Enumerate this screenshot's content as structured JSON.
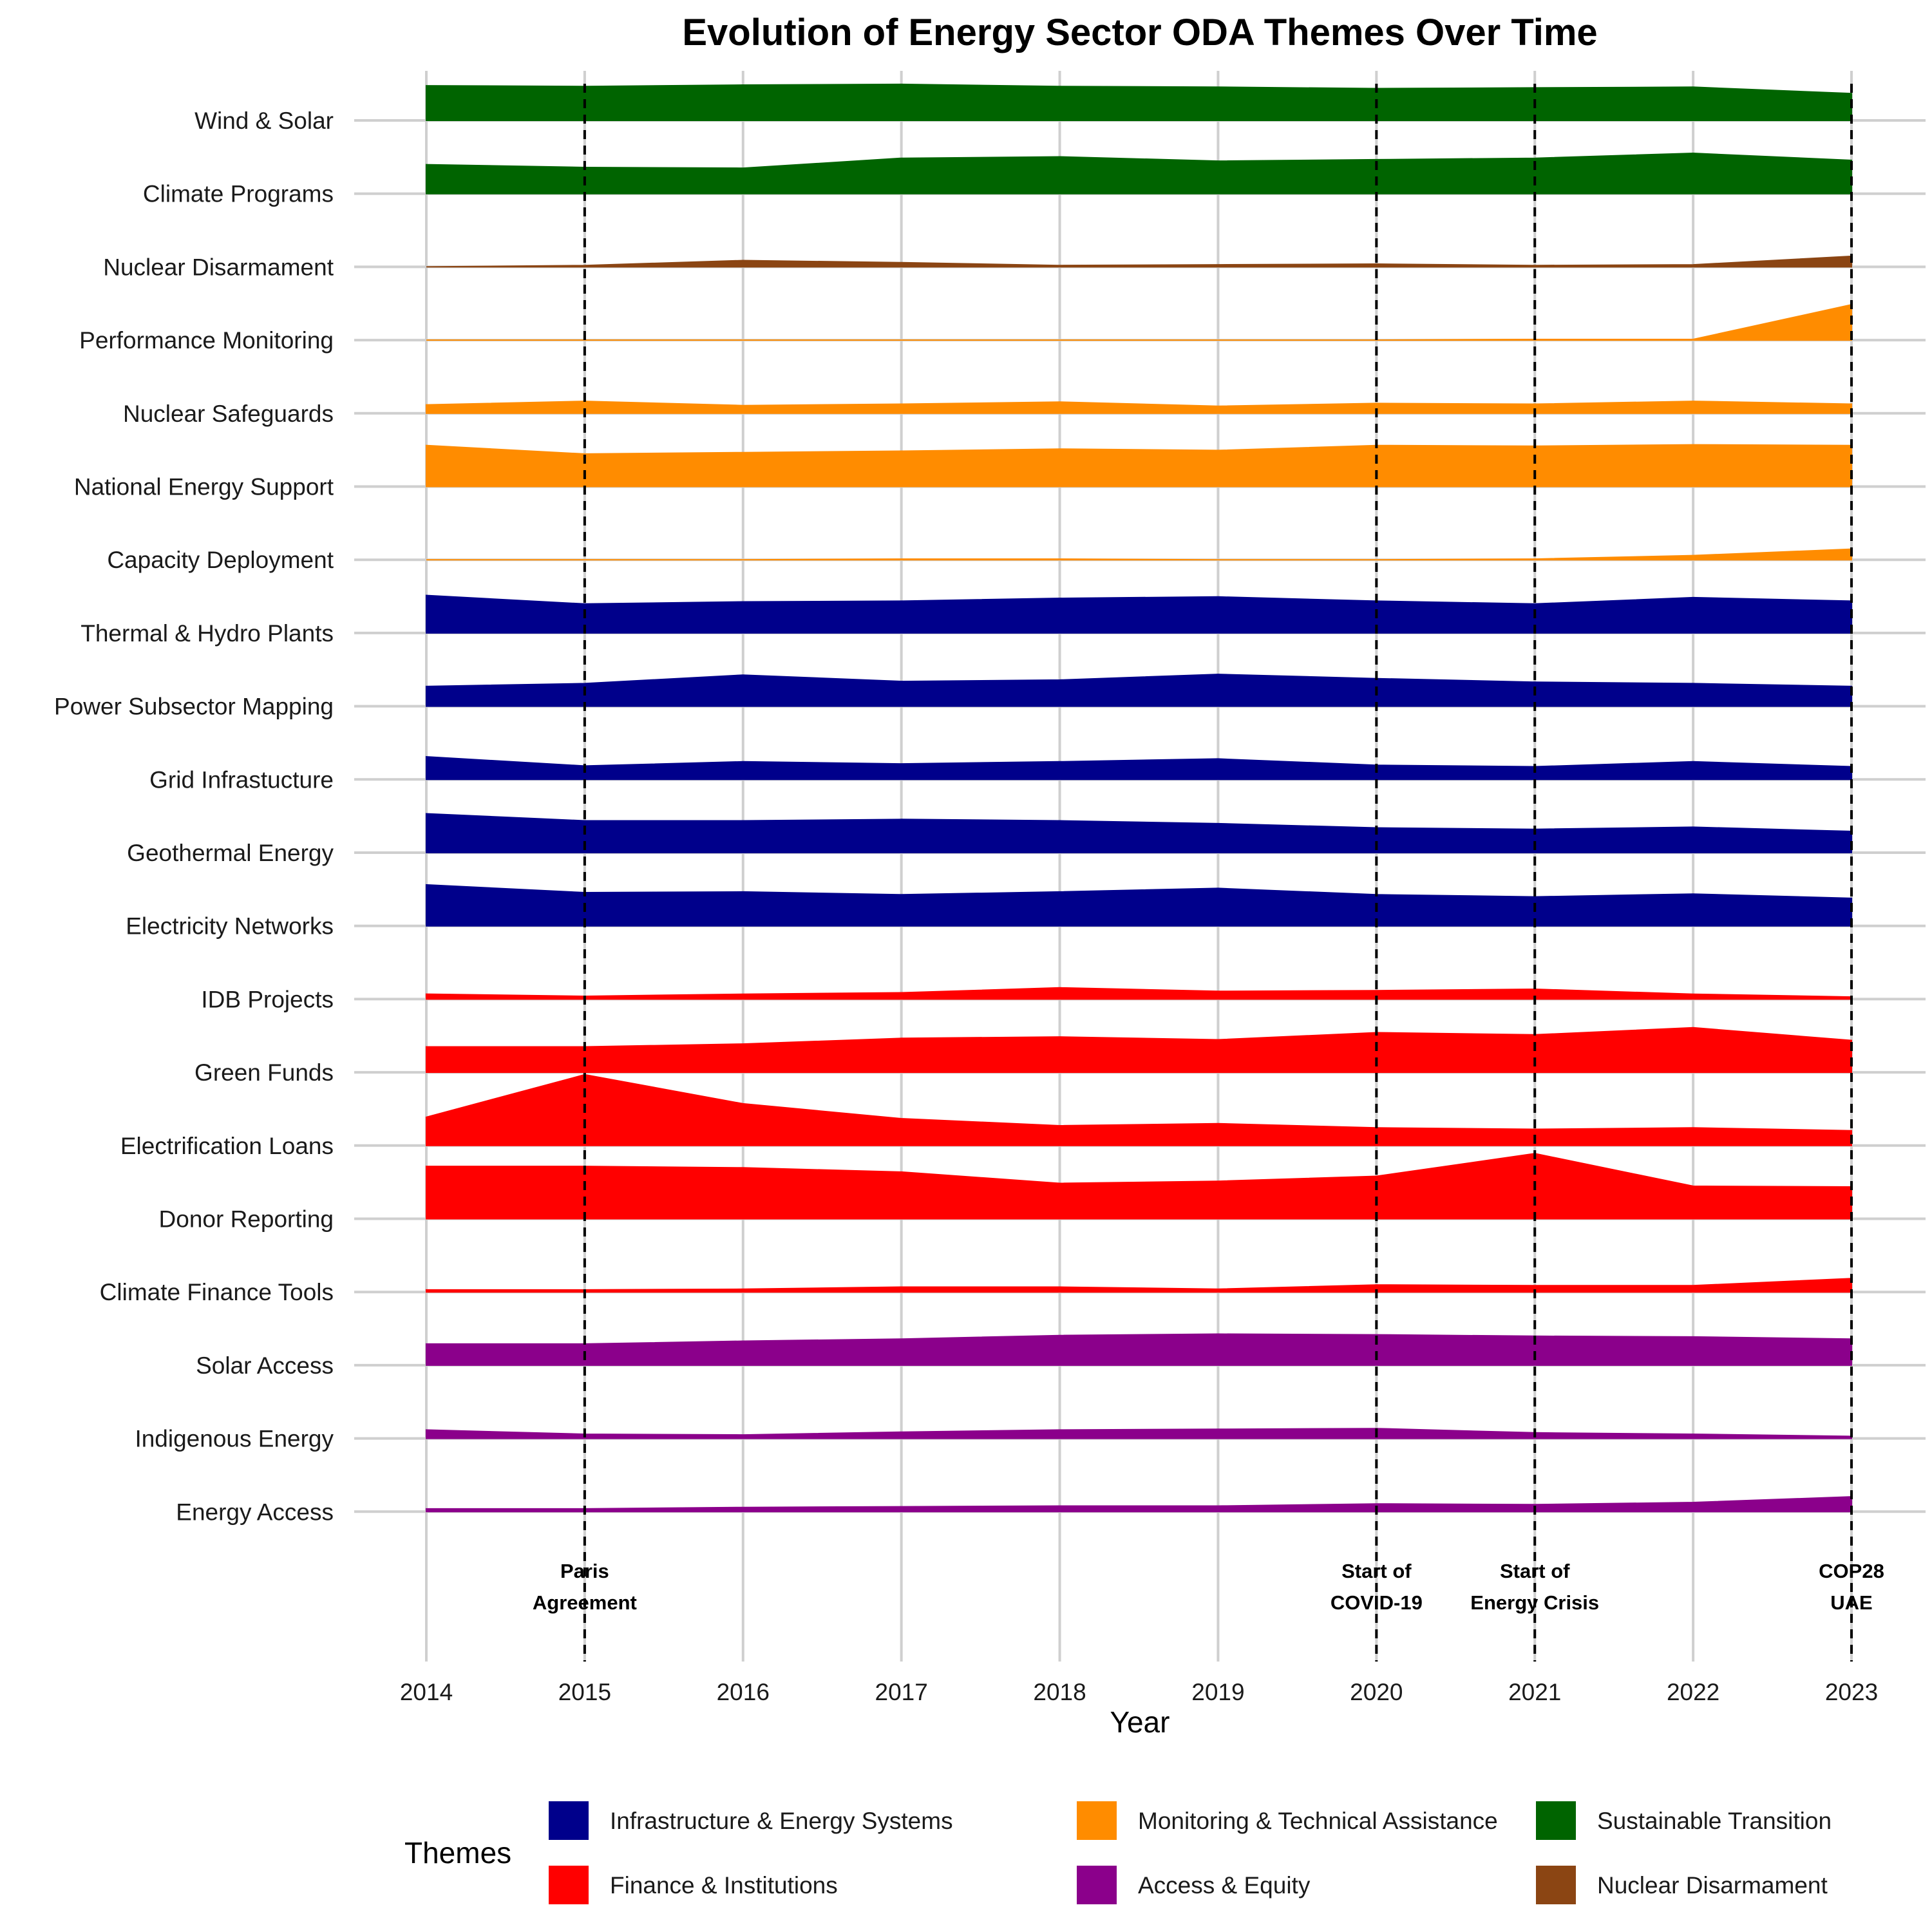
{
  "chart_data": {
    "type": "area",
    "title": "Evolution of Energy Sector ODA Themes Over Time",
    "xlabel": "Year",
    "x": [
      2014,
      2015,
      2016,
      2017,
      2018,
      2019,
      2020,
      2021,
      2022,
      2023
    ],
    "series": [
      {
        "name": "Wind & Solar",
        "theme": "Sustainable Transition",
        "values": [
          0.49,
          0.48,
          0.5,
          0.51,
          0.48,
          0.47,
          0.45,
          0.46,
          0.47,
          0.38
        ]
      },
      {
        "name": "Climate Programs",
        "theme": "Sustainable Transition",
        "values": [
          0.41,
          0.37,
          0.36,
          0.5,
          0.52,
          0.46,
          0.48,
          0.5,
          0.57,
          0.47
        ]
      },
      {
        "name": "Nuclear Disarmament",
        "theme": "Nuclear Disarmament",
        "values": [
          0.0,
          0.02,
          0.09,
          0.06,
          0.02,
          0.03,
          0.04,
          0.02,
          0.03,
          0.15
        ]
      },
      {
        "name": "Performance Monitoring",
        "theme": "Monitoring & Technical Assistance",
        "values": [
          0.0,
          0.0,
          0.0,
          0.0,
          0.0,
          0.0,
          0.0,
          0.01,
          0.01,
          0.5
        ]
      },
      {
        "name": "Nuclear Safeguards",
        "theme": "Monitoring & Technical Assistance",
        "values": [
          0.12,
          0.17,
          0.11,
          0.13,
          0.16,
          0.1,
          0.14,
          0.13,
          0.17,
          0.13
        ]
      },
      {
        "name": "National Energy Support",
        "theme": "Monitoring & Technical Assistance",
        "values": [
          0.58,
          0.46,
          0.48,
          0.5,
          0.53,
          0.51,
          0.58,
          0.57,
          0.59,
          0.58
        ]
      },
      {
        "name": "Capacity Deployment",
        "theme": "Monitoring & Technical Assistance",
        "values": [
          0.0,
          0.0,
          0.0,
          0.01,
          0.01,
          0.0,
          0.0,
          0.01,
          0.06,
          0.15
        ]
      },
      {
        "name": "Thermal & Hydro Plants",
        "theme": "Infrastructure & Energy Systems",
        "values": [
          0.53,
          0.41,
          0.44,
          0.45,
          0.49,
          0.51,
          0.45,
          0.41,
          0.5,
          0.45
        ]
      },
      {
        "name": "Power Subsector Mapping",
        "theme": "Infrastructure & Energy Systems",
        "values": [
          0.28,
          0.32,
          0.44,
          0.35,
          0.37,
          0.45,
          0.39,
          0.34,
          0.32,
          0.28
        ]
      },
      {
        "name": "Grid Infrastucture",
        "theme": "Infrastructure & Energy Systems",
        "values": [
          0.32,
          0.19,
          0.25,
          0.22,
          0.25,
          0.29,
          0.2,
          0.18,
          0.25,
          0.18
        ]
      },
      {
        "name": "Geothermal Energy",
        "theme": "Infrastructure & Energy Systems",
        "values": [
          0.55,
          0.45,
          0.45,
          0.47,
          0.45,
          0.41,
          0.35,
          0.33,
          0.36,
          0.3
        ]
      },
      {
        "name": "Electricity Networks",
        "theme": "Infrastructure & Energy Systems",
        "values": [
          0.58,
          0.47,
          0.48,
          0.44,
          0.48,
          0.53,
          0.44,
          0.41,
          0.45,
          0.39
        ]
      },
      {
        "name": "IDB Projects",
        "theme": "Finance & Institutions",
        "values": [
          0.07,
          0.04,
          0.07,
          0.09,
          0.16,
          0.11,
          0.12,
          0.14,
          0.07,
          0.03
        ]
      },
      {
        "name": "Green Funds",
        "theme": "Finance & Institutions",
        "values": [
          0.36,
          0.36,
          0.4,
          0.48,
          0.5,
          0.46,
          0.56,
          0.53,
          0.63,
          0.45
        ]
      },
      {
        "name": "Electrification Loans",
        "theme": "Finance & Institutions",
        "values": [
          0.4,
          1.0,
          0.59,
          0.38,
          0.28,
          0.31,
          0.25,
          0.23,
          0.25,
          0.21
        ]
      },
      {
        "name": "Donor Reporting",
        "theme": "Finance & Institutions",
        "values": [
          0.74,
          0.74,
          0.72,
          0.66,
          0.5,
          0.53,
          0.6,
          0.92,
          0.46,
          0.45
        ]
      },
      {
        "name": "Climate Finance Tools",
        "theme": "Finance & Institutions",
        "values": [
          0.03,
          0.03,
          0.04,
          0.07,
          0.07,
          0.04,
          0.1,
          0.09,
          0.09,
          0.19
        ]
      },
      {
        "name": "Solar Access",
        "theme": "Access & Equity",
        "values": [
          0.3,
          0.3,
          0.34,
          0.37,
          0.42,
          0.44,
          0.43,
          0.41,
          0.4,
          0.37
        ]
      },
      {
        "name": "Indigenous Energy",
        "theme": "Access & Equity",
        "values": [
          0.12,
          0.06,
          0.05,
          0.09,
          0.12,
          0.13,
          0.14,
          0.08,
          0.06,
          0.03
        ]
      },
      {
        "name": "Energy Access",
        "theme": "Access & Equity",
        "values": [
          0.04,
          0.04,
          0.06,
          0.07,
          0.08,
          0.08,
          0.11,
          0.1,
          0.13,
          0.21
        ]
      }
    ],
    "events": [
      {
        "year": 2015,
        "label": [
          "Paris",
          "Agreement"
        ]
      },
      {
        "year": 2020,
        "label": [
          "Start of",
          "COVID-19"
        ]
      },
      {
        "year": 2021,
        "label": [
          "Start of",
          "Energy Crisis"
        ]
      },
      {
        "year": 2023,
        "label": [
          "COP28",
          "UAE"
        ]
      }
    ],
    "legend": {
      "title": "Themes",
      "position": "bottom",
      "items": [
        {
          "name": "Infrastructure & Energy Systems",
          "color": "#00008B"
        },
        {
          "name": "Monitoring & Technical Assistance",
          "color": "#FF8C00"
        },
        {
          "name": "Sustainable Transition",
          "color": "#006400"
        },
        {
          "name": "Finance & Institutions",
          "color": "#FF0000"
        },
        {
          "name": "Access & Equity",
          "color": "#8B008B"
        },
        {
          "name": "Nuclear Disarmament",
          "color": "#8B4513"
        }
      ]
    },
    "grid": true
  }
}
